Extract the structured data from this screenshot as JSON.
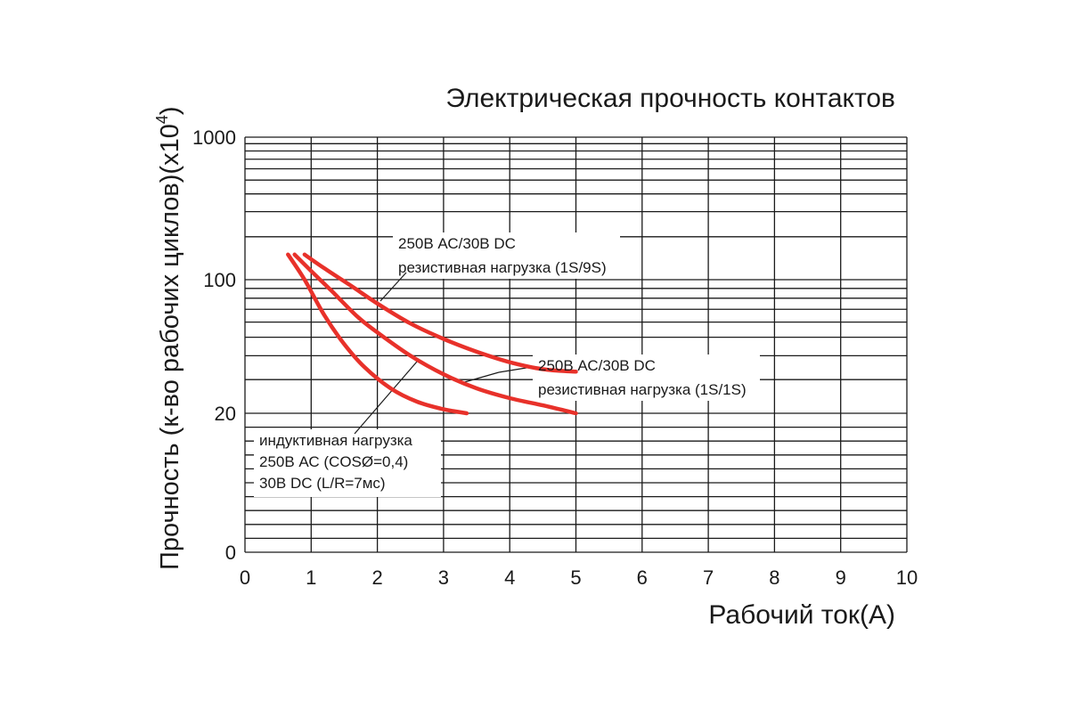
{
  "chart_data": {
    "type": "line",
    "title": "Электрическая прочность контактов",
    "xlabel": "Рабочий ток(А)",
    "ylabel_main": "Прочность (к-во рабочих циклов)(x10",
    "ylabel_sup": "4",
    "ylabel_end": ")",
    "xlim": [
      0,
      10
    ],
    "x_ticks": [
      "0",
      "1",
      "2",
      "3",
      "4",
      "5",
      "6",
      "7",
      "8",
      "9",
      "10"
    ],
    "y_ticks": [
      {
        "value": 1000,
        "label": "1000"
      },
      {
        "value": 100,
        "label": "100"
      },
      {
        "value": 20,
        "label": "20"
      },
      {
        "value": 0,
        "label": "0"
      }
    ],
    "y_scale": "piecewise-log",
    "y_grid_values": [
      1000,
      900,
      800,
      700,
      600,
      500,
      400,
      300,
      200,
      100,
      90,
      80,
      70,
      60,
      50,
      40,
      30,
      20,
      18,
      16,
      14,
      12,
      10,
      8,
      6,
      4,
      2,
      0
    ],
    "grid": true,
    "series_color": "#e8312a",
    "series": [
      {
        "x": [
          0.9,
          1.2,
          1.6,
          2.0,
          2.5,
          3.0,
          3.5,
          4.0,
          4.5,
          5.0
        ],
        "y": [
          150,
          120,
          93,
          75,
          59,
          49,
          42,
          37,
          34,
          33
        ]
      },
      {
        "x": [
          0.75,
          1.0,
          1.3,
          1.7,
          2.0,
          2.5,
          3.0,
          3.5,
          4.0,
          4.5,
          5.0
        ],
        "y": [
          150,
          115,
          88,
          64,
          53,
          40,
          32,
          27,
          24,
          22,
          20
        ]
      },
      {
        "x": [
          0.65,
          0.9,
          1.2,
          1.5,
          1.8,
          2.2,
          2.6,
          3.0,
          3.35
        ],
        "y": [
          150,
          100,
          65,
          46,
          35,
          27,
          23,
          21,
          20
        ]
      }
    ],
    "annotations": [
      {
        "lines": [
          "250В АС/30В DC",
          "резистивная нагрузка (1S/9S)"
        ]
      },
      {
        "lines": [
          "250В АС/30В DC",
          "резистивная нагрузка (1S/1S)"
        ]
      },
      {
        "lines": [
          "индуктивная нагрузка",
          "250В АС (COSØ=0,4)",
          "30В DC (L/R=7мс)"
        ]
      }
    ]
  }
}
